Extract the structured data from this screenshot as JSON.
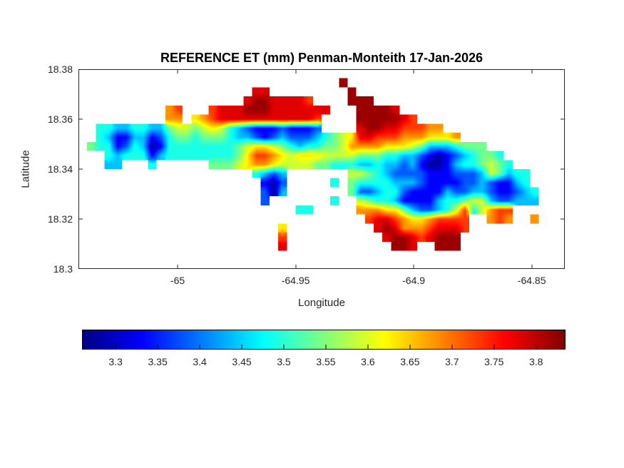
{
  "figure": {
    "background": "#ffffff"
  },
  "chart_data": {
    "type": "heatmap",
    "title": "REFERENCE ET (mm) Penman-Monteith 17-Jan-2026",
    "xlabel": "Longitude",
    "ylabel": "Latitude",
    "xlim": [
      -65.042,
      -64.836
    ],
    "ylim": [
      18.3,
      18.38
    ],
    "xticks": [
      -65,
      -64.95,
      -64.9,
      -64.85
    ],
    "xtick_labels": [
      "-65",
      "-64.95",
      "-64.9",
      "-64.85"
    ],
    "yticks": [
      18.38,
      18.36,
      18.34,
      18.32,
      18.3
    ],
    "ytick_labels": [
      "18.38",
      "18.36",
      "18.34",
      "18.32",
      "18.3"
    ],
    "colormap": "jet",
    "clim": [
      3.26,
      3.835
    ],
    "axis_color": "#262626",
    "colorbar": {
      "orientation": "horizontal",
      "ticks": [
        3.3,
        3.35,
        3.4,
        3.45,
        3.5,
        3.55,
        3.6,
        3.65,
        3.7,
        3.75,
        3.8
      ],
      "tick_labels": [
        "3.3",
        "3.35",
        "3.4",
        "3.45",
        "3.5",
        "3.55",
        "3.6",
        "3.65",
        "3.7",
        "3.75",
        "3.8"
      ]
    },
    "grid": {
      "encoding": "ET (mm) on lon-lat grid; '.' = ocean (no data); rows run north (18.38) to south (18.30)",
      "cols": 56,
      "rows": 22,
      "value_map": {
        "1": 3.28,
        "2": 3.33,
        "3": 3.38,
        "4": 3.44,
        "5": 3.49,
        "6": 3.54,
        "7": 3.59,
        "8": 3.63,
        "9": 3.68,
        "a": 3.73,
        "b": 3.78,
        "c": 3.82
      },
      "rows_data": [
        "........................................................",
        "..............................c.........................",
        "....................bb.........c........................",
        "...................bccbbbba....ccc......................",
        "..........9a...abbbcccbbbbbbb...ccccb...................",
        "..........99.89abbbbbbbbbbba....cccccba.................",
        "..55445544677678754322232223....bccbbaaa99..............",
        "..542244235665666544323433345678bbaaa9998889............",
        ".6552354125555555567887654556679999888764445666.........",
        "...54555245555555568aa987888777766655443212345665.......",
        "...44...5......66678998777766555445443421124556765......",
        "....................5434.......776543333222333476455....",
        ".....................213.....5.655554443222233432245....",
        ".....................314.......6334553222243344322345...",
        ".....................3.......5..765542222455677433444...",
        ".........................55.....999886433457a579aa......",
        ".................................abba9889aaaa..9a9..9...",
        ".......................8..........bcb999abbba...........",
        ".......................a...........bccbabccc............",
        ".......................b............ccb..ccc............",
        "........................................................",
        "........................................................"
      ]
    }
  }
}
